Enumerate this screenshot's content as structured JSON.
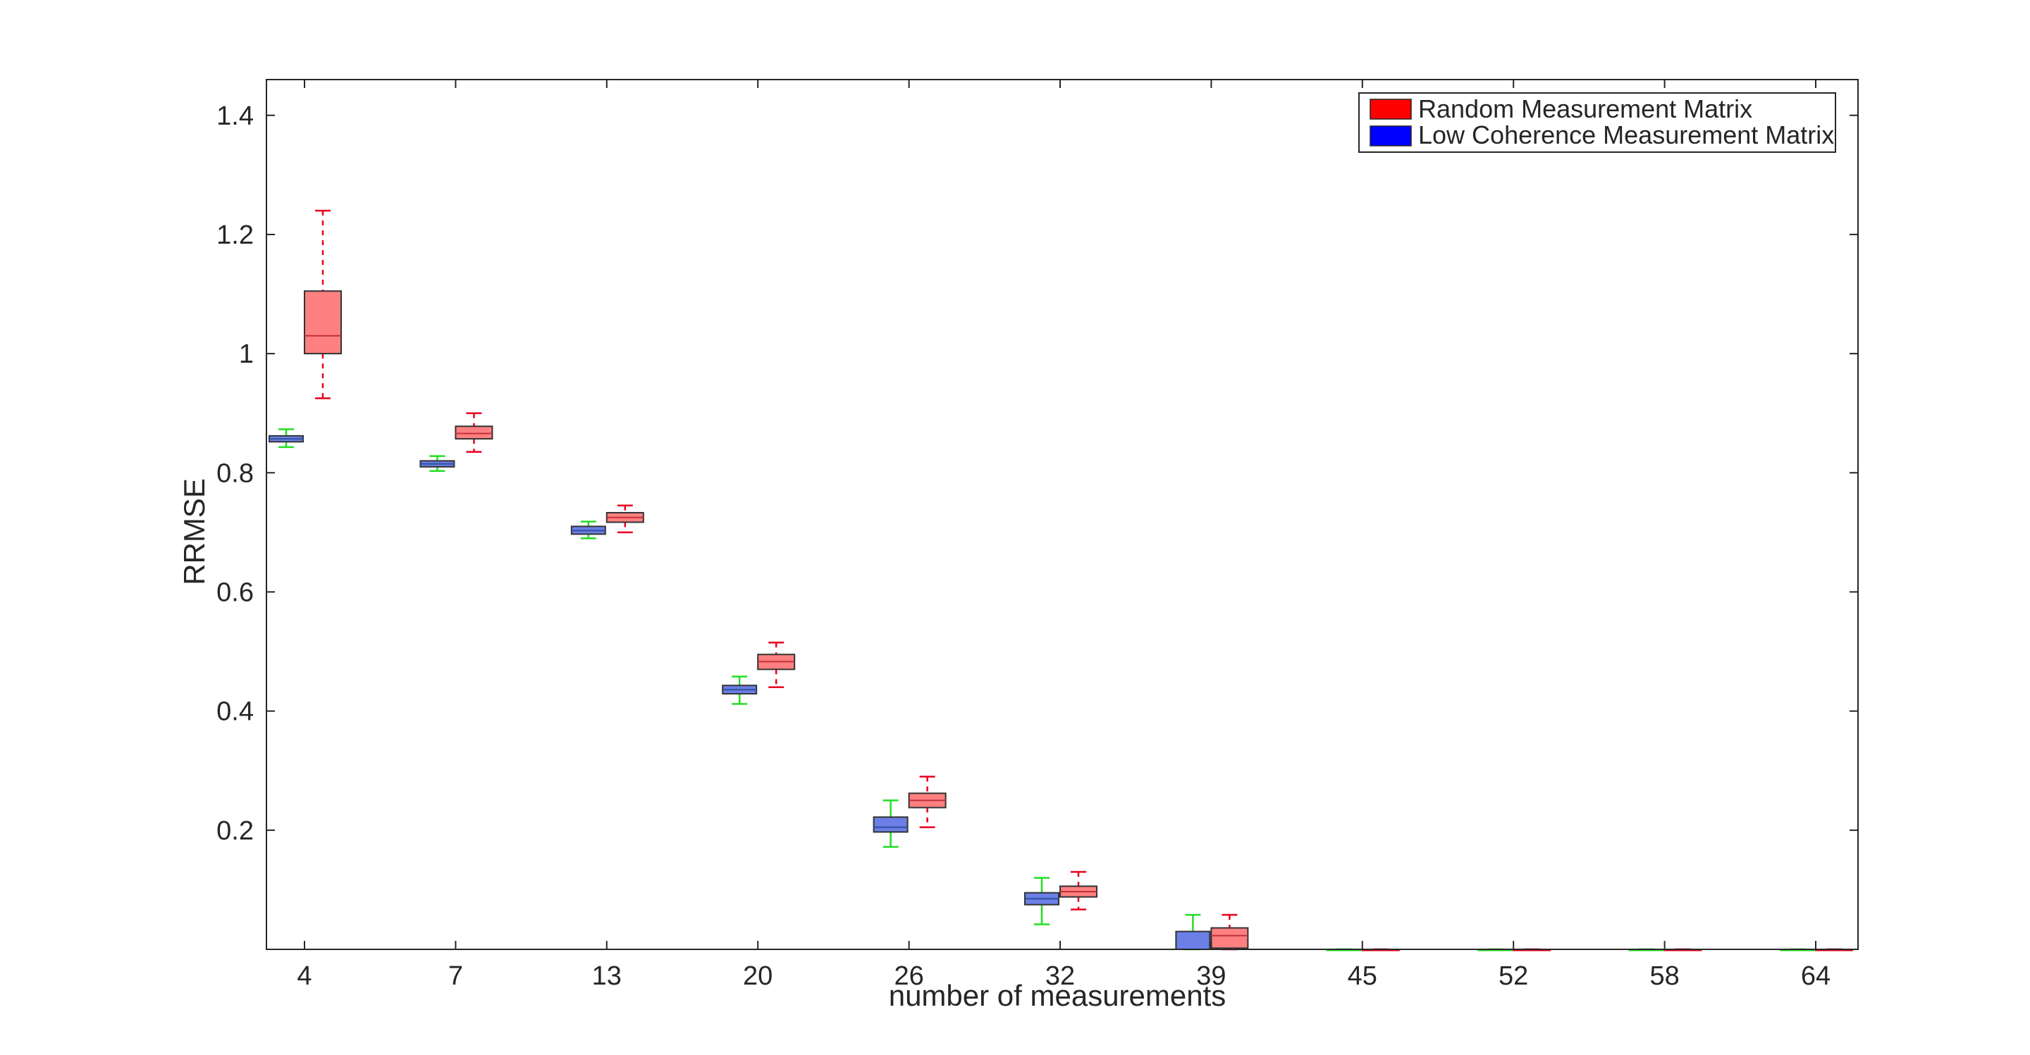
{
  "chart_data": {
    "type": "boxplot",
    "xlabel": "number of measurements",
    "ylabel": "RRMSE",
    "ylim": [
      0,
      1.46
    ],
    "yticks": [
      0.2,
      0.4,
      0.6,
      0.8,
      1,
      1.2,
      1.4
    ],
    "ytick_labels": [
      "0.2",
      "0.4",
      "0.6",
      "0.8",
      "1",
      "1.2",
      "1.4"
    ],
    "categories": [
      "4",
      "7",
      "13",
      "20",
      "26",
      "32",
      "39",
      "45",
      "52",
      "58",
      "64"
    ],
    "grid": false,
    "legend_position": "top-right",
    "series": [
      {
        "name": "Random Measurement Matrix",
        "legend_color": "#ff0000",
        "box_color": "#ff8080",
        "whisker_color": "#e8001c",
        "stats": [
          {
            "whisker_low": 0.925,
            "q1": 1.0,
            "median": 1.03,
            "q3": 1.105,
            "whisker_high": 1.24
          },
          {
            "whisker_low": 0.835,
            "q1": 0.857,
            "median": 0.866,
            "q3": 0.878,
            "whisker_high": 0.9
          },
          {
            "whisker_low": 0.7,
            "q1": 0.717,
            "median": 0.725,
            "q3": 0.733,
            "whisker_high": 0.745
          },
          {
            "whisker_low": 0.44,
            "q1": 0.47,
            "median": 0.483,
            "q3": 0.495,
            "whisker_high": 0.515
          },
          {
            "whisker_low": 0.205,
            "q1": 0.238,
            "median": 0.25,
            "q3": 0.262,
            "whisker_high": 0.29
          },
          {
            "whisker_low": 0.067,
            "q1": 0.088,
            "median": 0.097,
            "q3": 0.106,
            "whisker_high": 0.13
          },
          {
            "whisker_low": 0.0,
            "q1": 0.002,
            "median": 0.023,
            "q3": 0.036,
            "whisker_high": 0.058
          },
          {
            "whisker_low": 0.0,
            "q1": 0.0,
            "median": 0.0,
            "q3": 0.0,
            "whisker_high": 0.0
          },
          {
            "whisker_low": 0.0,
            "q1": 0.0,
            "median": 0.0,
            "q3": 0.0,
            "whisker_high": 0.0
          },
          {
            "whisker_low": 0.0,
            "q1": 0.0,
            "median": 0.0,
            "q3": 0.0,
            "whisker_high": 0.0
          },
          {
            "whisker_low": 0.0,
            "q1": 0.0,
            "median": 0.0,
            "q3": 0.0,
            "whisker_high": 0.0
          }
        ]
      },
      {
        "name": "Low Coherence Measurement Matrix",
        "legend_color": "#0000ff",
        "box_color": "#6b7fe6",
        "whisker_color": "#22dd22",
        "stats": [
          {
            "whisker_low": 0.843,
            "q1": 0.852,
            "median": 0.857,
            "q3": 0.862,
            "whisker_high": 0.873
          },
          {
            "whisker_low": 0.803,
            "q1": 0.81,
            "median": 0.815,
            "q3": 0.82,
            "whisker_high": 0.828
          },
          {
            "whisker_low": 0.69,
            "q1": 0.697,
            "median": 0.703,
            "q3": 0.71,
            "whisker_high": 0.718
          },
          {
            "whisker_low": 0.412,
            "q1": 0.429,
            "median": 0.436,
            "q3": 0.443,
            "whisker_high": 0.458
          },
          {
            "whisker_low": 0.172,
            "q1": 0.197,
            "median": 0.205,
            "q3": 0.222,
            "whisker_high": 0.25
          },
          {
            "whisker_low": 0.042,
            "q1": 0.075,
            "median": 0.085,
            "q3": 0.095,
            "whisker_high": 0.12
          },
          {
            "whisker_low": 0.0,
            "q1": 0.0,
            "median": 0.0,
            "q3": 0.03,
            "whisker_high": 0.058
          },
          {
            "whisker_low": 0.0,
            "q1": 0.0,
            "median": 0.0,
            "q3": 0.0,
            "whisker_high": 0.0
          },
          {
            "whisker_low": 0.0,
            "q1": 0.0,
            "median": 0.0,
            "q3": 0.0,
            "whisker_high": 0.0
          },
          {
            "whisker_low": 0.0,
            "q1": 0.0,
            "median": 0.0,
            "q3": 0.0,
            "whisker_high": 0.0
          },
          {
            "whisker_low": 0.0,
            "q1": 0.0,
            "median": 0.0,
            "q3": 0.0,
            "whisker_high": 0.0
          }
        ]
      }
    ]
  }
}
